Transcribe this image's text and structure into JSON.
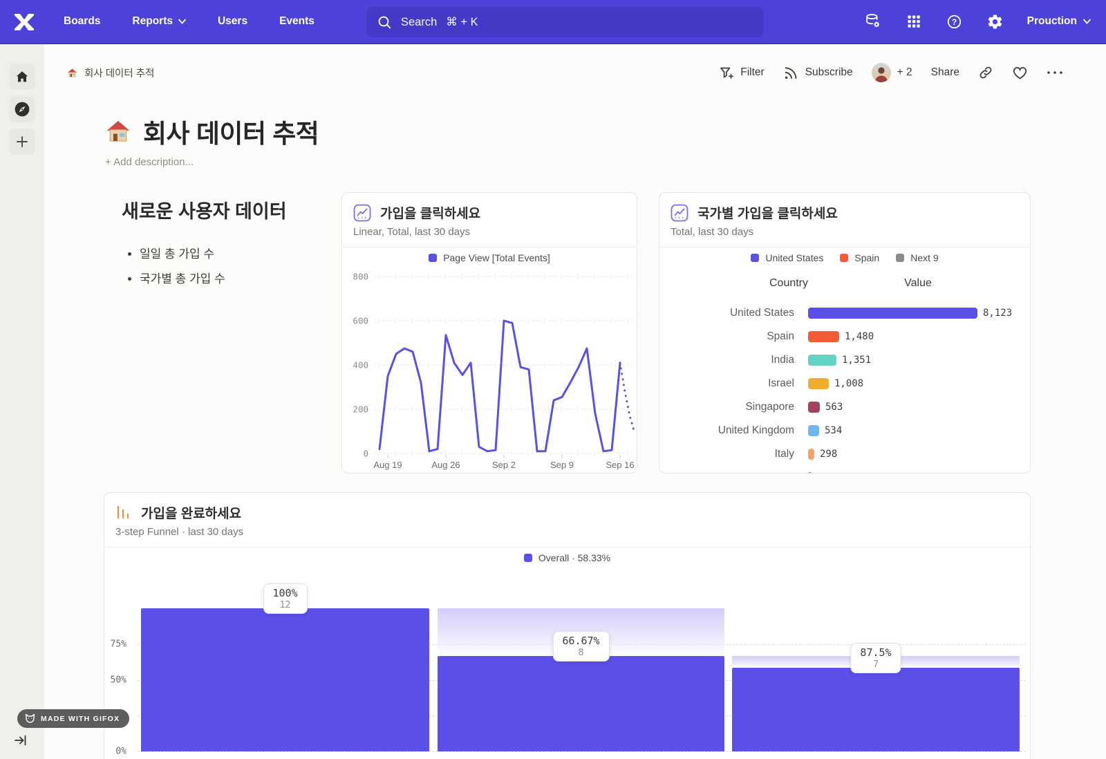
{
  "nav": {
    "items": [
      "Boards",
      "Reports",
      "Users",
      "Events"
    ],
    "search": {
      "label": "Search",
      "shortcut": "⌘ + K"
    },
    "project": "Prouction"
  },
  "breadcrumb": {
    "title": "회사 데이터 추적"
  },
  "actions": {
    "filter": "Filter",
    "subscribe": "Subscribe",
    "collaborators": "+ 2",
    "share": "Share"
  },
  "page": {
    "title": "회사 데이터 추적",
    "add_description": "+ Add description..."
  },
  "text_widget": {
    "heading": "새로운 사용자 데이터",
    "bullets": [
      "일일 총 가입 수",
      "국가별 총 가입 수"
    ]
  },
  "badge": {
    "label": "MADE WITH GIFOX"
  },
  "colors": {
    "nav": "#4c42d9",
    "accent": "#5a50e8",
    "funnel_bar": "#5b50ea"
  },
  "chart_data": [
    {
      "type": "line",
      "title": "가입을 클릭하세요",
      "subtitle": "Linear, Total, last 30 days",
      "legend": "Page View [Total Events]",
      "color": "#5a50e8",
      "x_ticks": [
        "Aug 19",
        "Aug 26",
        "Sep 2",
        "Sep 9",
        "Sep 16"
      ],
      "x_tick_indices": [
        1,
        8,
        15,
        22,
        29
      ],
      "y_ticks": [
        0,
        200,
        400,
        600,
        800
      ],
      "ylim": [
        0,
        800
      ],
      "grid": true,
      "series": [
        {
          "name": "Page View [Total Events]",
          "values": [
            20,
            350,
            450,
            475,
            460,
            320,
            10,
            20,
            535,
            410,
            355,
            410,
            30,
            10,
            15,
            600,
            590,
            390,
            380,
            10,
            10,
            240,
            255,
            320,
            390,
            475,
            180,
            10,
            15,
            410
          ]
        }
      ],
      "incomplete_tail": [
        410,
        280,
        170,
        95
      ]
    },
    {
      "type": "bar",
      "title": "국가별 가입을 클릭하세요",
      "subtitle": "Total, last 30 days",
      "legend": [
        {
          "label": "United States",
          "color": "#5a50e8"
        },
        {
          "label": "Spain",
          "color": "#f25b35"
        },
        {
          "label": "Next 9",
          "color": "#8c8c8c"
        }
      ],
      "columns": [
        "Country",
        "Value"
      ],
      "rows": [
        {
          "label": "United States",
          "value": 8123,
          "display": "8,123",
          "color": "#5a50e8"
        },
        {
          "label": "Spain",
          "value": 1480,
          "display": "1,480",
          "color": "#f25b35"
        },
        {
          "label": "India",
          "value": 1351,
          "display": "1,351",
          "color": "#62d3c2"
        },
        {
          "label": "Israel",
          "value": 1008,
          "display": "1,008",
          "color": "#eead2e"
        },
        {
          "label": "Singapore",
          "value": 563,
          "display": "563",
          "color": "#a2425f"
        },
        {
          "label": "United Kingdom",
          "value": 534,
          "display": "534",
          "color": "#70b5f1"
        },
        {
          "label": "Italy",
          "value": 298,
          "display": "298",
          "color": "#f4a26b"
        }
      ],
      "partial_row_color": "#5a62ec"
    },
    {
      "type": "funnel",
      "title": "가입을 완료하세요",
      "subtitle": "3-step Funnel · last 30 days",
      "legend_label": "Overall · 58.33%",
      "color": "#5b50ea",
      "y_ticks": [
        "75%",
        "50%",
        "25%",
        "0%"
      ],
      "steps": [
        {
          "pct_label": "100%",
          "count": 12,
          "height_pct": 100,
          "shade_from": null
        },
        {
          "pct_label": "66.67%",
          "count": 8,
          "height_pct": 66.67,
          "shade_from": 100
        },
        {
          "pct_label": "87.5%",
          "count": 7,
          "height_pct": 58.33,
          "shade_from": 66.67
        }
      ]
    }
  ]
}
